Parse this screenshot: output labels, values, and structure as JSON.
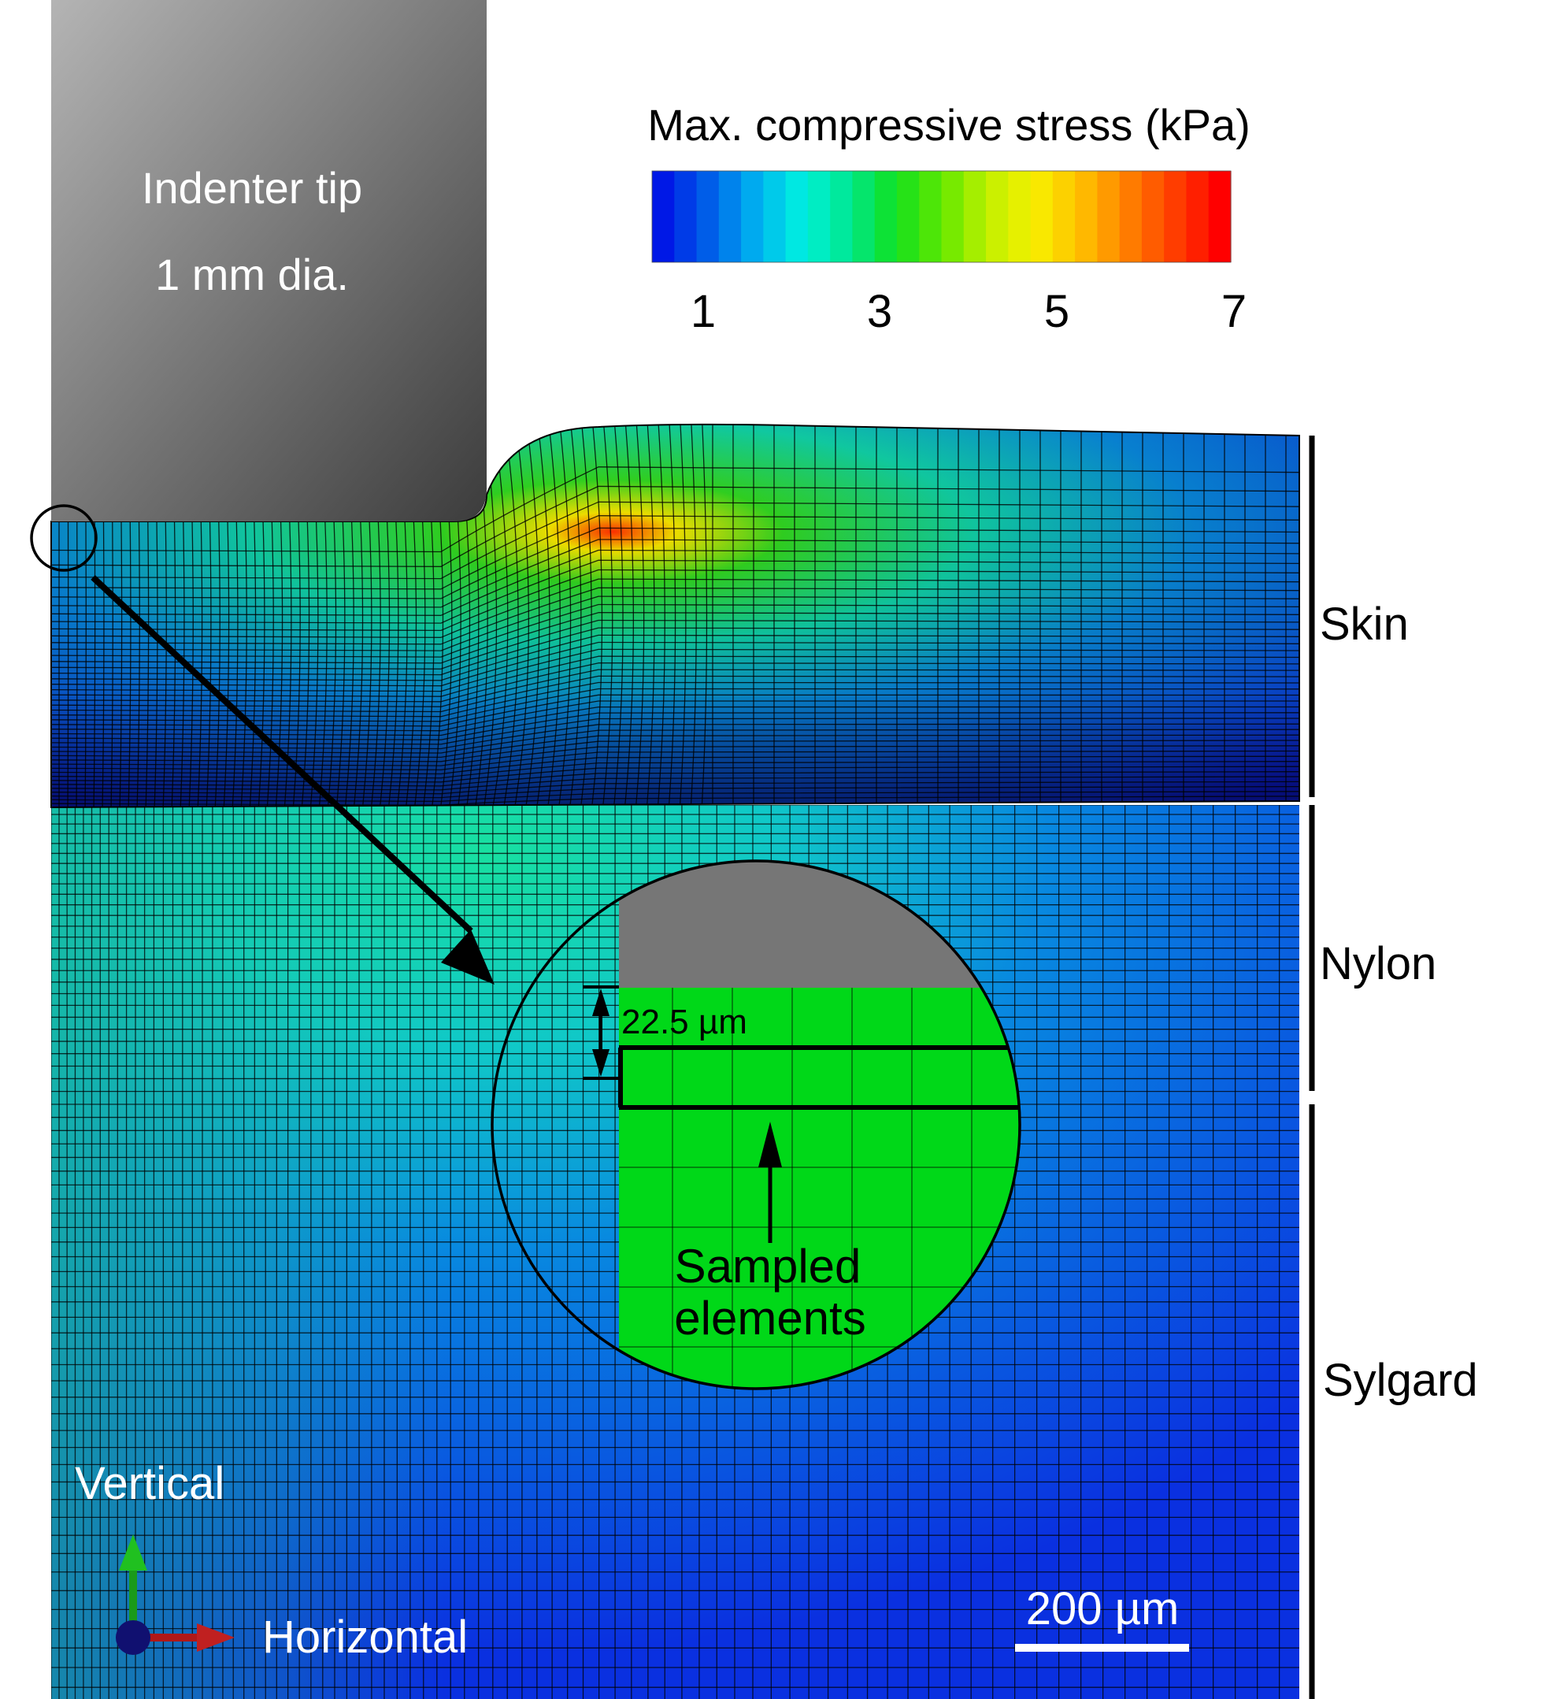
{
  "indenter": {
    "line1": "Indenter tip",
    "line2": "1 mm dia."
  },
  "colorbar": {
    "title": "Max. compressive stress (kPa)",
    "ticks": [
      "1",
      "3",
      "5",
      "7"
    ],
    "colors": [
      "#0018e6",
      "#0060e8",
      "#00b0f0",
      "#00f0e0",
      "#00e890",
      "#10e020",
      "#60e800",
      "#c0f000",
      "#f8f000",
      "#ffc000",
      "#ff8000",
      "#ff4000",
      "#ff0000"
    ]
  },
  "layers": [
    "Skin",
    "Nylon",
    "Sylgard"
  ],
  "inset": {
    "thickness_label": "22.5 µm",
    "sampled_line1": "Sampled",
    "sampled_line2": "elements"
  },
  "axes": {
    "vertical": "Vertical",
    "horizontal": "Horizontal"
  },
  "scalebar": {
    "label": "200 µm"
  },
  "colors": {
    "skin_top": "#0a1ad0",
    "nylon_hi": "#14d8b0",
    "sylgard": "#0a40e0",
    "indenter": "#707070",
    "sampled": "#00d818"
  }
}
